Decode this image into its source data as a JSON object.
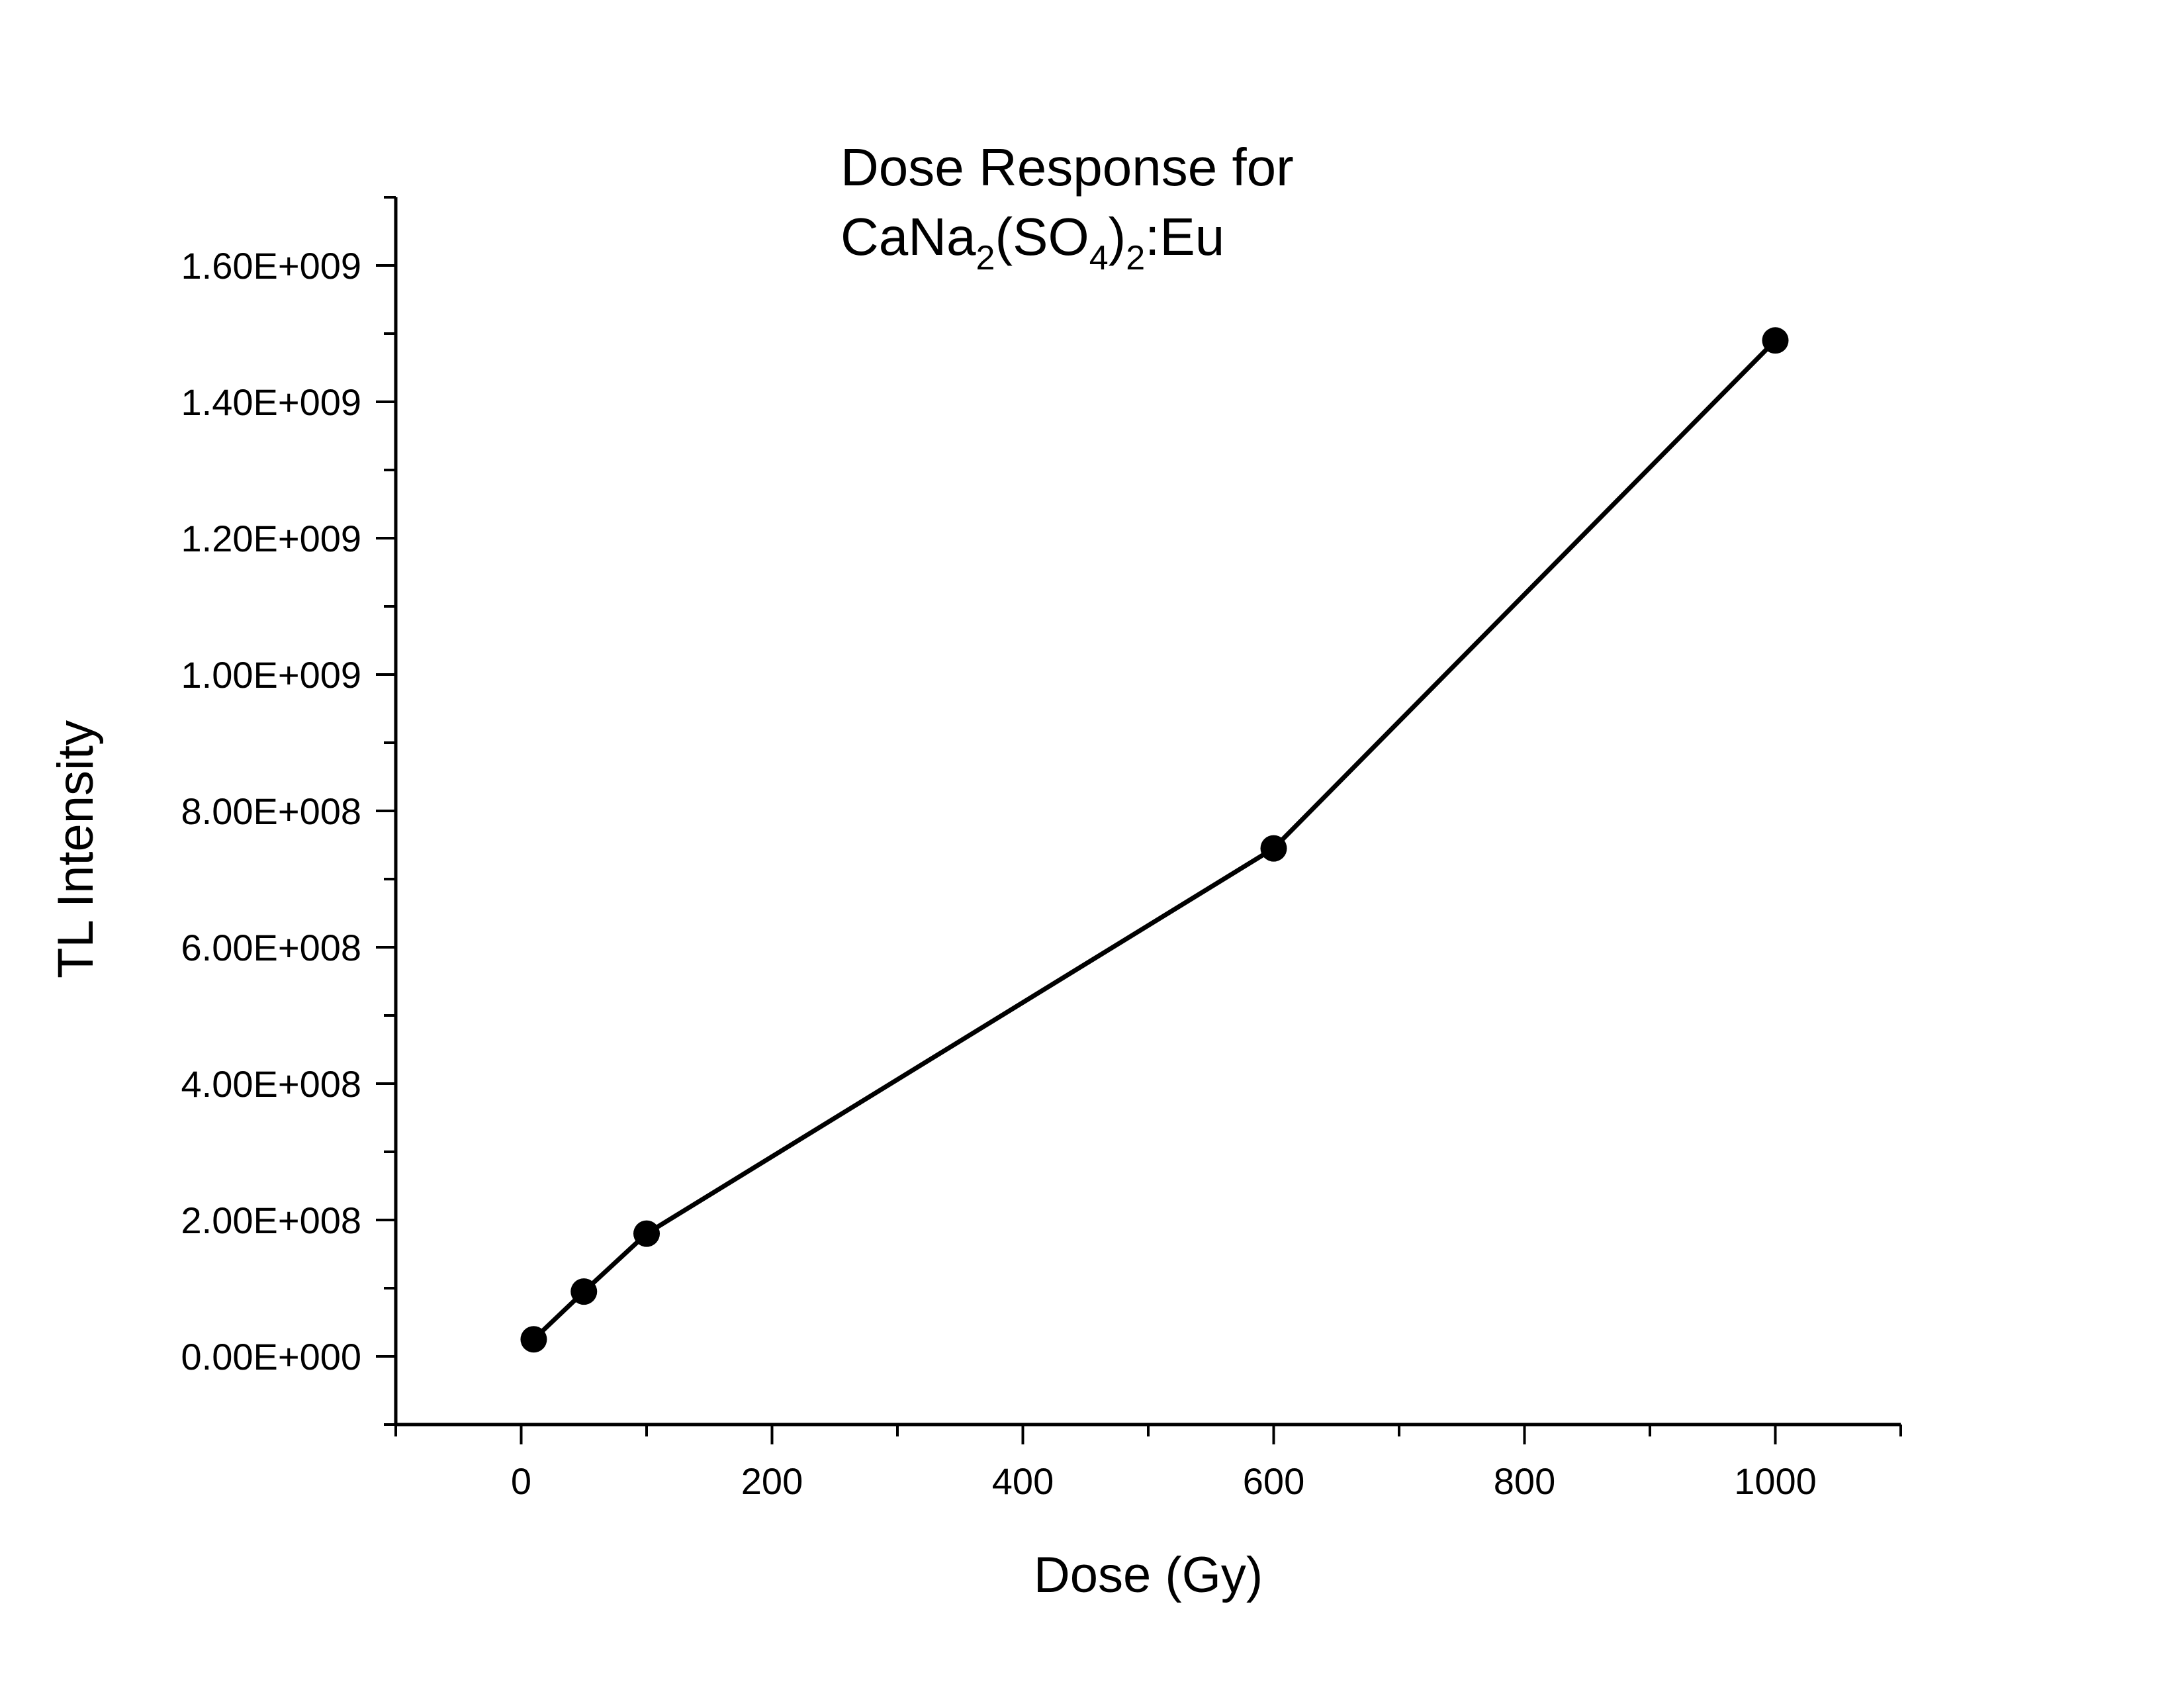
{
  "chart_data": {
    "type": "line",
    "title": {
      "line1": "Dose Response for",
      "line2": [
        {
          "text": "CaNa",
          "sub": false
        },
        {
          "text": "2",
          "sub": true
        },
        {
          "text": "(SO",
          "sub": false
        },
        {
          "text": "4",
          "sub": true
        },
        {
          "text": ")",
          "sub": false
        },
        {
          "text": "2",
          "sub": true
        },
        {
          "text": ":Eu",
          "sub": false
        }
      ]
    },
    "xlabel": "Dose (Gy)",
    "ylabel": "TL Intensity",
    "xlim": [
      -100,
      1100
    ],
    "ylim": [
      -100000000,
      1700000000
    ],
    "x_ticks": [
      0,
      200,
      400,
      600,
      800,
      1000
    ],
    "x_tick_labels": [
      "0",
      "200",
      "400",
      "600",
      "800",
      "1000"
    ],
    "y_ticks": [
      0,
      200000000,
      400000000,
      600000000,
      800000000,
      1000000000,
      1200000000,
      1400000000,
      1600000000
    ],
    "y_tick_labels": [
      "0.00E+000",
      "2.00E+008",
      "4.00E+008",
      "6.00E+008",
      "8.00E+008",
      "1.00E+009",
      "1.20E+009",
      "1.40E+009",
      "1.60E+009"
    ],
    "grid": false,
    "series": [
      {
        "x": [
          10,
          50,
          100,
          600,
          1000
        ],
        "y": [
          25000000,
          95000000,
          180000000,
          745000000,
          1490000000
        ],
        "marker": "circle",
        "color": "#000000"
      }
    ]
  }
}
